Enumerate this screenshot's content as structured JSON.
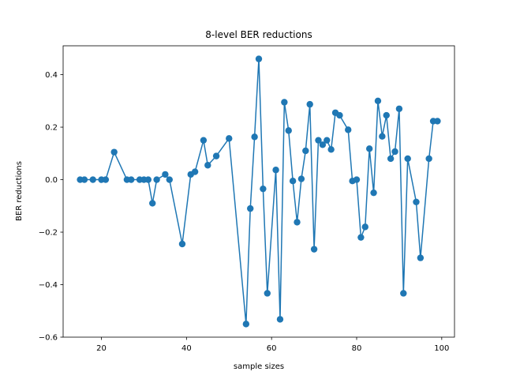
{
  "chart_data": {
    "type": "line",
    "title": "8-level BER reductions",
    "xlabel": "sample sizes",
    "ylabel": "BER reductions",
    "xlim": [
      11,
      103
    ],
    "ylim": [
      -0.6,
      0.51
    ],
    "xticks": [
      20,
      40,
      60,
      80,
      100
    ],
    "xtick_labels": [
      "20",
      "40",
      "60",
      "80",
      "100"
    ],
    "yticks": [
      -0.6,
      -0.4,
      -0.2,
      0.0,
      0.2,
      0.4
    ],
    "ytick_labels": [
      "−0.6",
      "−0.4",
      "−0.2",
      "0.0",
      "0.2",
      "0.4"
    ],
    "grid": false,
    "series": [
      {
        "color": "#1f77b4",
        "marker": "circle",
        "x": [
          15,
          16,
          18,
          20,
          21,
          23,
          26,
          27,
          29,
          30,
          31,
          32,
          33,
          35,
          36,
          39,
          41,
          42,
          44,
          45,
          47,
          50,
          54,
          55,
          56,
          57,
          58,
          59,
          61,
          62,
          63,
          64,
          65,
          66,
          67,
          68,
          69,
          70,
          71,
          72,
          73,
          74,
          75,
          76,
          78,
          79,
          80,
          81,
          82,
          83,
          84,
          85,
          86,
          87,
          88,
          89,
          90,
          91,
          92,
          94,
          95,
          97,
          98,
          99
        ],
        "y": [
          0.0,
          0.0,
          0.0,
          0.0,
          0.0,
          0.105,
          0.0,
          0.0,
          0.0,
          0.0,
          0.0,
          -0.09,
          0.0,
          0.02,
          0.0,
          -0.245,
          0.02,
          0.03,
          0.15,
          0.055,
          0.09,
          0.157,
          -0.55,
          -0.11,
          0.163,
          0.46,
          -0.035,
          -0.433,
          0.037,
          -0.532,
          0.295,
          0.187,
          -0.005,
          -0.162,
          0.003,
          0.11,
          0.287,
          -0.265,
          0.15,
          0.133,
          0.15,
          0.115,
          0.255,
          0.245,
          0.19,
          -0.005,
          0.0,
          -0.22,
          -0.18,
          0.118,
          -0.05,
          0.3,
          0.165,
          0.245,
          0.08,
          0.107,
          0.27,
          -0.433,
          0.08,
          -0.085,
          -0.298,
          0.08,
          0.223,
          0.223
        ]
      }
    ]
  }
}
